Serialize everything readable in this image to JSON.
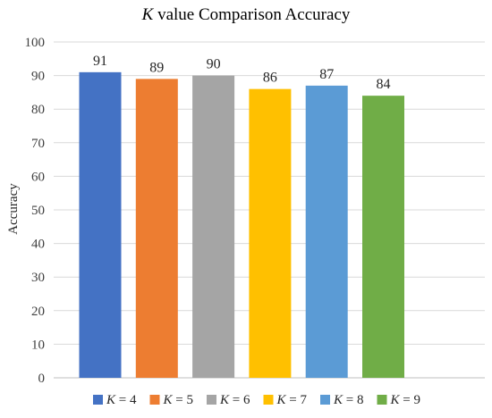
{
  "chart_data": {
    "type": "bar",
    "title": "K value Comparison Accuracy",
    "title_parts": {
      "var": "K",
      "rest": " value Comparison Accuracy"
    },
    "xlabel": "",
    "ylabel": "Accuracy",
    "ylim": [
      0,
      100
    ],
    "yticks": [
      0,
      10,
      20,
      30,
      40,
      50,
      60,
      70,
      80,
      90,
      100
    ],
    "grid": true,
    "legend_position": "bottom",
    "categories": [
      "K = 4",
      "K = 5",
      "K = 6",
      "K = 7",
      "K = 8",
      "K = 9"
    ],
    "series": [
      {
        "name": "K = 4",
        "var": "K",
        "suffix": " = 4",
        "value": 91,
        "color": "#4472C4"
      },
      {
        "name": "K = 5",
        "var": "K",
        "suffix": " = 5",
        "value": 89,
        "color": "#ED7D31"
      },
      {
        "name": "K = 6",
        "var": "K",
        "suffix": " = 6",
        "value": 90,
        "color": "#A5A5A5"
      },
      {
        "name": "K = 7",
        "var": "K",
        "suffix": " = 7",
        "value": 86,
        "color": "#FFC000"
      },
      {
        "name": "K = 8",
        "var": "K",
        "suffix": " = 8",
        "value": 87,
        "color": "#5B9BD5"
      },
      {
        "name": "K = 9",
        "var": "K",
        "suffix": " = 9",
        "value": 84,
        "color": "#70AD47"
      }
    ],
    "gridline_color": "#D9D9D9",
    "axis_color": "#BFBFBF"
  }
}
